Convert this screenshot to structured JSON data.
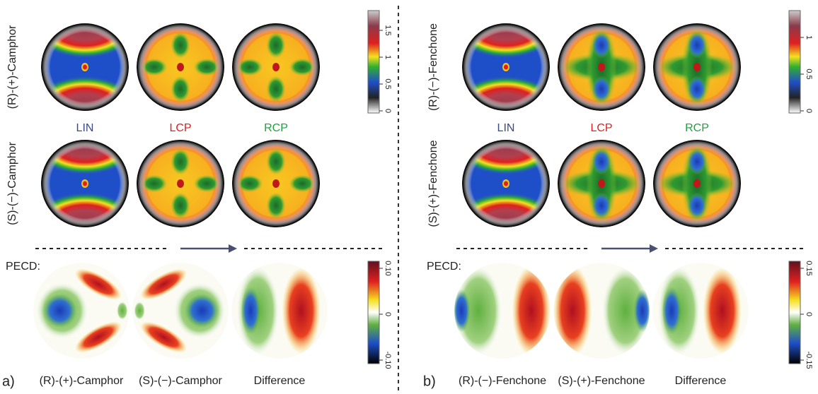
{
  "panels": [
    {
      "letter": "a)",
      "row_labels": [
        "(R)-(+)-Camphor",
        "(S)-(−)-Camphor"
      ],
      "column_labels": [
        "LIN",
        "LCP",
        "RCP"
      ],
      "colorbar_ticks": [
        "0",
        "0.5",
        "1",
        "1.5"
      ],
      "pecd_label": "PECD:",
      "pecd_colorbar_ticks": [
        "-0.10",
        "0",
        "0.10"
      ],
      "pecd_labels": [
        "(R)-(+)-Camphor",
        "(S)-(−)-Camphor",
        "Difference"
      ]
    },
    {
      "letter": "b)",
      "row_labels": [
        "(R)-(−)-Fenchone",
        "(S)-(+)-Fenchone"
      ],
      "column_labels": [
        "LIN",
        "LCP",
        "RCP"
      ],
      "colorbar_ticks": [
        "0",
        "0.5",
        "1"
      ],
      "pecd_label": "PECD:",
      "pecd_colorbar_ticks": [
        "-0.15",
        "0",
        "0.15"
      ],
      "pecd_labels": [
        "(R)-(−)-Fenchone",
        "(S)-(+)-Fenchone",
        "Difference"
      ]
    }
  ]
}
